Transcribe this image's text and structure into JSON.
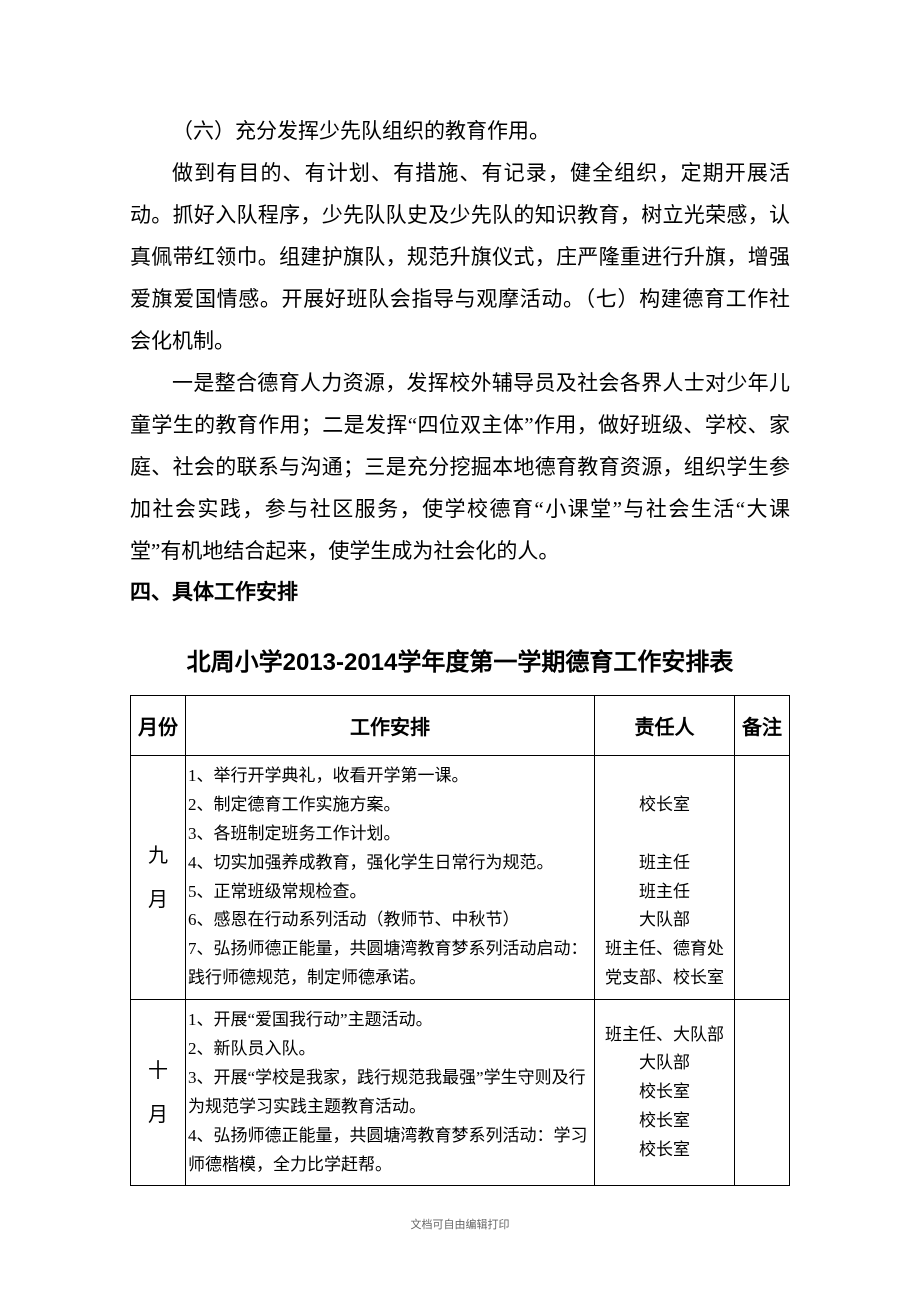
{
  "paragraphs": {
    "p1": "（六）充分发挥少先队组织的教育作用。",
    "p2": "做到有目的、有计划、有措施、有记录，健全组织，定期开展活动。抓好入队程序，少先队队史及少先队的知识教育，树立光荣感，认真佩带红领巾。组建护旗队，规范升旗仪式，庄严隆重进行升旗，增强爱旗爱国情感。开展好班队会指导与观摩活动。（七）构建德育工作社会化机制。",
    "p3": "一是整合德育人力资源，发挥校外辅导员及社会各界人士对少年儿童学生的教育作用；二是发挥“四位双主体”作用，做好班级、学校、家庭、社会的联系与沟通；三是充分挖掘本地德育教育资源，组织学生参加社会实践，参与社区服务，使学校德育“小课堂”与社会生活“大课堂”有机地结合起来，使学生成为社会化的人。",
    "heading": "四、具体工作安排"
  },
  "table": {
    "title": "北周小学2013-2014学年度第一学期德育工作安排表",
    "columns": {
      "month": "月份",
      "work": "工作安排",
      "person": "责任人",
      "note": "备注"
    },
    "rows": [
      {
        "month": "九月",
        "work_lines": [
          "1、举行开学典礼，收看开学第一课。",
          "2、制定德育工作实施方案。",
          "3、各班制定班务工作计划。",
          "4、切实加强养成教育，强化学生日常行为规范。",
          "5、正常班级常规检查。",
          "6、感恩在行动系列活动（教师节、中秋节）",
          "7、弘扬师德正能量，共圆塘湾教育梦系列活动启动：践行师德规范，制定师德承诺。"
        ],
        "person_lines": [
          "",
          "校长室",
          "",
          "班主任",
          "班主任",
          "大队部",
          "班主任、德育处",
          "党支部、校长室"
        ],
        "note": ""
      },
      {
        "month": "十月",
        "work_lines": [
          "1、开展“爱国我行动”主题活动。",
          "2、新队员入队。",
          "3、开展“学校是我家，践行规范我最强”学生守则及行为规范学习实践主题教育活动。",
          "4、弘扬师德正能量，共圆塘湾教育梦系列活动：学习师德楷模，全力比学赶帮。"
        ],
        "person_lines": [
          "班主任、大队部",
          "大队部",
          "校长室",
          "校长室",
          "校长室"
        ],
        "note": ""
      }
    ]
  },
  "footer": "文档可自由编辑打印",
  "styles": {
    "background_color": "#ffffff",
    "text_color": "#000000",
    "paragraph_fontsize": 21,
    "paragraph_lineheight": 2.0,
    "table_title_fontsize": 24,
    "th_fontsize": 20,
    "td_fontsize": 17,
    "footer_fontsize": 11,
    "footer_color": "#666666",
    "border_color": "#000000"
  }
}
